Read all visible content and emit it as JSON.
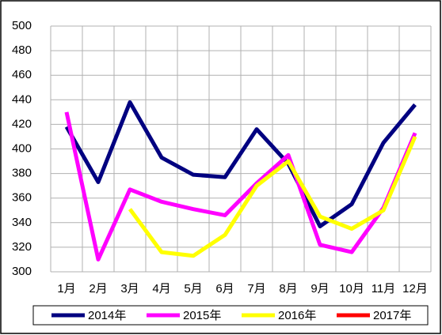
{
  "chart_data": {
    "type": "line",
    "categories": [
      "1月",
      "2月",
      "3月",
      "4月",
      "5月",
      "6月",
      "7月",
      "8月",
      "9月",
      "10月",
      "11月",
      "12月"
    ],
    "series": [
      {
        "name": "2014年",
        "color": "#000080",
        "values": [
          418,
          373,
          438,
          393,
          379,
          377,
          416,
          388,
          337,
          355,
          405,
          436
        ]
      },
      {
        "name": "2015年",
        "color": "#ff00ff",
        "values": [
          430,
          310,
          367,
          357,
          351,
          346,
          372,
          395,
          322,
          316,
          352,
          413
        ]
      },
      {
        "name": "2016年",
        "color": "#ffff00",
        "values": [
          null,
          null,
          351,
          316,
          313,
          330,
          370,
          390,
          345,
          335,
          350,
          410
        ]
      },
      {
        "name": "2017年",
        "color": "#ff0000",
        "values": [
          null,
          null,
          null,
          null,
          null,
          null,
          null,
          null,
          null,
          null,
          null,
          null
        ]
      }
    ],
    "ylim": [
      300,
      500
    ],
    "yticks": [
      300,
      320,
      340,
      360,
      380,
      400,
      420,
      440,
      460,
      480,
      500
    ],
    "grid": true
  }
}
